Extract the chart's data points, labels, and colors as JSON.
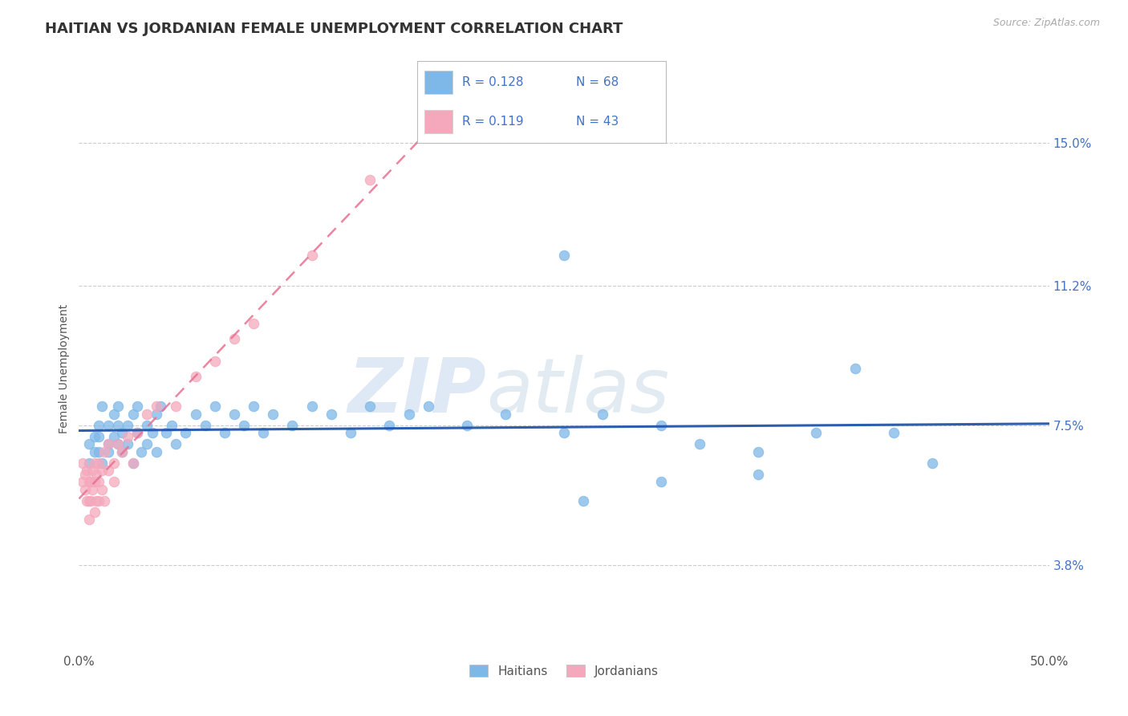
{
  "title": "HAITIAN VS JORDANIAN FEMALE UNEMPLOYMENT CORRELATION CHART",
  "source": "Source: ZipAtlas.com",
  "ylabel": "Female Unemployment",
  "xmin": 0.0,
  "xmax": 0.5,
  "ymin": 0.015,
  "ymax": 0.165,
  "yticks": [
    0.038,
    0.075,
    0.112,
    0.15
  ],
  "ytick_labels": [
    "3.8%",
    "7.5%",
    "11.2%",
    "15.0%"
  ],
  "watermark_zip": "ZIP",
  "watermark_atlas": "atlas",
  "legend_r1": "R = 0.128",
  "legend_n1": "N = 68",
  "legend_r2": "R = 0.119",
  "legend_n2": "N = 43",
  "haitian_color": "#7eb8e8",
  "jordanian_color": "#f5a8bc",
  "haitian_line_color": "#2255aa",
  "jordanian_line_color": "#e87090",
  "background_color": "#ffffff",
  "grid_color": "#cccccc",
  "title_color": "#333333",
  "tick_color": "#4472c4",
  "haitian_x": [
    0.005,
    0.005,
    0.008,
    0.008,
    0.01,
    0.01,
    0.01,
    0.012,
    0.012,
    0.015,
    0.015,
    0.015,
    0.018,
    0.018,
    0.02,
    0.02,
    0.02,
    0.022,
    0.022,
    0.025,
    0.025,
    0.028,
    0.028,
    0.03,
    0.03,
    0.032,
    0.035,
    0.035,
    0.038,
    0.04,
    0.04,
    0.042,
    0.045,
    0.048,
    0.05,
    0.055,
    0.06,
    0.065,
    0.07,
    0.075,
    0.08,
    0.085,
    0.09,
    0.095,
    0.1,
    0.11,
    0.12,
    0.13,
    0.14,
    0.15,
    0.16,
    0.17,
    0.18,
    0.2,
    0.22,
    0.25,
    0.27,
    0.3,
    0.32,
    0.35,
    0.38,
    0.4,
    0.42,
    0.44,
    0.25,
    0.3,
    0.26,
    0.35
  ],
  "haitian_y": [
    0.07,
    0.065,
    0.072,
    0.068,
    0.075,
    0.072,
    0.068,
    0.08,
    0.065,
    0.075,
    0.07,
    0.068,
    0.072,
    0.078,
    0.075,
    0.07,
    0.08,
    0.068,
    0.073,
    0.075,
    0.07,
    0.078,
    0.065,
    0.073,
    0.08,
    0.068,
    0.075,
    0.07,
    0.073,
    0.078,
    0.068,
    0.08,
    0.073,
    0.075,
    0.07,
    0.073,
    0.078,
    0.075,
    0.08,
    0.073,
    0.078,
    0.075,
    0.08,
    0.073,
    0.078,
    0.075,
    0.08,
    0.078,
    0.073,
    0.08,
    0.075,
    0.078,
    0.08,
    0.075,
    0.078,
    0.073,
    0.078,
    0.075,
    0.07,
    0.068,
    0.073,
    0.09,
    0.073,
    0.065,
    0.12,
    0.06,
    0.055,
    0.062
  ],
  "jordanian_x": [
    0.002,
    0.002,
    0.003,
    0.003,
    0.004,
    0.004,
    0.005,
    0.005,
    0.005,
    0.006,
    0.006,
    0.007,
    0.007,
    0.008,
    0.008,
    0.008,
    0.009,
    0.009,
    0.01,
    0.01,
    0.01,
    0.012,
    0.012,
    0.013,
    0.013,
    0.015,
    0.015,
    0.018,
    0.018,
    0.02,
    0.022,
    0.025,
    0.028,
    0.03,
    0.035,
    0.04,
    0.05,
    0.06,
    0.07,
    0.08,
    0.09,
    0.12,
    0.15
  ],
  "jordanian_y": [
    0.065,
    0.06,
    0.062,
    0.058,
    0.063,
    0.055,
    0.06,
    0.055,
    0.05,
    0.06,
    0.055,
    0.063,
    0.058,
    0.06,
    0.065,
    0.052,
    0.062,
    0.055,
    0.065,
    0.06,
    0.055,
    0.063,
    0.058,
    0.068,
    0.055,
    0.063,
    0.07,
    0.065,
    0.06,
    0.07,
    0.068,
    0.072,
    0.065,
    0.073,
    0.078,
    0.08,
    0.08,
    0.088,
    0.092,
    0.098,
    0.102,
    0.12,
    0.14
  ],
  "title_fontsize": 13,
  "label_fontsize": 10,
  "tick_fontsize": 11
}
